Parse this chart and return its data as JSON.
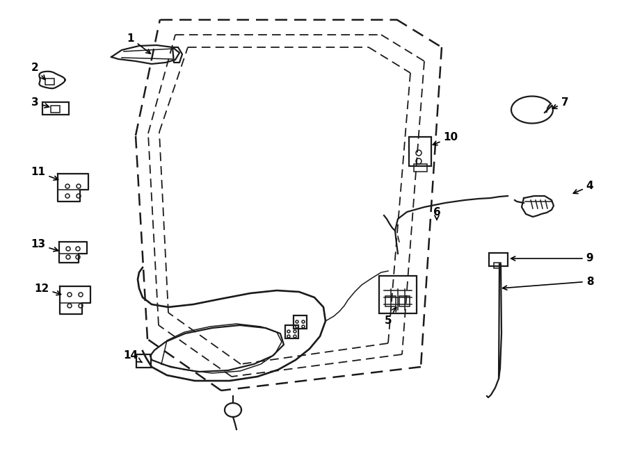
{
  "background_color": "#ffffff",
  "line_color": "#1a1a1a",
  "label_color": "#000000",
  "fig_width": 9.0,
  "fig_height": 6.62,
  "dpi": 100,
  "door_outer": {
    "x": [
      230,
      570,
      635,
      600,
      310,
      210,
      195,
      230
    ],
    "y": [
      25,
      25,
      65,
      530,
      565,
      490,
      200,
      25
    ]
  },
  "door_inner1": {
    "x": [
      253,
      550,
      610,
      578,
      325,
      228,
      215,
      253
    ],
    "y": [
      48,
      48,
      85,
      512,
      545,
      468,
      200,
      48
    ]
  },
  "door_inner2": {
    "x": [
      272,
      535,
      590,
      558,
      338,
      244,
      232,
      272
    ],
    "y": [
      65,
      65,
      103,
      496,
      527,
      450,
      200,
      65
    ]
  },
  "labels": {
    "1": [
      188,
      55,
      220,
      80
    ],
    "2": [
      50,
      98,
      68,
      118
    ],
    "3": [
      50,
      148,
      75,
      155
    ],
    "4": [
      848,
      268,
      820,
      280
    ],
    "5": [
      558,
      462,
      572,
      438
    ],
    "6": [
      628,
      305,
      628,
      318
    ],
    "7": [
      812,
      148,
      790,
      158
    ],
    "8": [
      848,
      405,
      718,
      415
    ],
    "9": [
      848,
      372,
      730,
      372
    ],
    "10": [
      648,
      198,
      618,
      210
    ],
    "11": [
      55,
      248,
      88,
      260
    ],
    "12": [
      60,
      415,
      92,
      425
    ],
    "13": [
      55,
      352,
      88,
      362
    ],
    "14": [
      188,
      512,
      205,
      522
    ]
  }
}
